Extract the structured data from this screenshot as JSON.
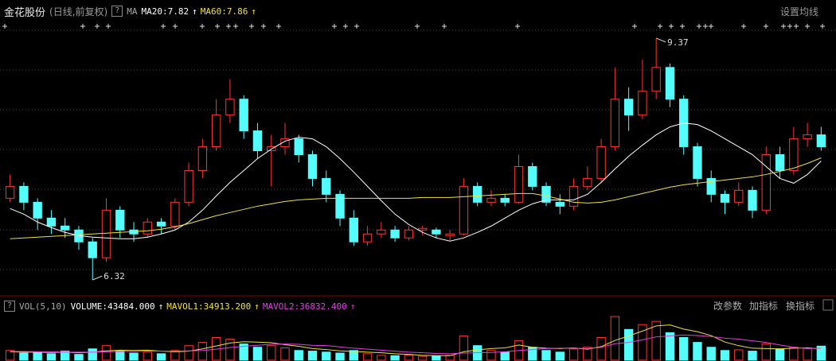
{
  "toolbar": {
    "help": "?",
    "arrow": "↑",
    "set_ma": "设置均线",
    "buttons": [
      "改参数",
      "加指标",
      "换指标"
    ]
  },
  "chart_data": [
    {
      "type": "candlestick",
      "title": "金花股份",
      "subtitle": "(日线,前复权)",
      "indicator": "MA",
      "up_color": "#ff3232",
      "down_color": "#54fcfc",
      "ylim": [
        6.14,
        9.57
      ],
      "high_label": "9.37",
      "low_label": "6.32",
      "ohlc": [
        [
          7.35,
          7.65,
          7.3,
          7.5
        ],
        [
          7.5,
          7.55,
          7.2,
          7.3
        ],
        [
          7.3,
          7.35,
          6.95,
          7.1
        ],
        [
          7.1,
          7.2,
          6.9,
          7.0
        ],
        [
          7.0,
          7.1,
          6.85,
          6.95
        ],
        [
          6.95,
          7.0,
          6.7,
          6.8
        ],
        [
          6.8,
          6.85,
          6.32,
          6.6
        ],
        [
          6.6,
          7.35,
          6.55,
          7.2
        ],
        [
          7.2,
          7.25,
          6.85,
          6.95
        ],
        [
          6.95,
          7.05,
          6.8,
          6.9
        ],
        [
          6.9,
          7.1,
          6.85,
          7.05
        ],
        [
          7.05,
          7.1,
          6.9,
          7.0
        ],
        [
          7.0,
          7.35,
          6.95,
          7.3
        ],
        [
          7.3,
          7.8,
          7.25,
          7.7
        ],
        [
          7.7,
          8.1,
          7.6,
          8.0
        ],
        [
          8.0,
          8.6,
          7.95,
          8.4
        ],
        [
          8.4,
          8.85,
          8.3,
          8.6
        ],
        [
          8.6,
          8.65,
          8.1,
          8.2
        ],
        [
          8.2,
          8.3,
          7.85,
          7.95
        ],
        [
          7.95,
          8.15,
          7.5,
          8.0
        ],
        [
          8.0,
          8.3,
          7.9,
          8.1
        ],
        [
          8.1,
          8.15,
          7.8,
          7.9
        ],
        [
          7.9,
          7.95,
          7.5,
          7.6
        ],
        [
          7.6,
          7.7,
          7.3,
          7.4
        ],
        [
          7.4,
          7.45,
          7.0,
          7.1
        ],
        [
          7.1,
          7.2,
          6.75,
          6.8
        ],
        [
          6.8,
          7.0,
          6.75,
          6.9
        ],
        [
          6.9,
          7.05,
          6.85,
          6.95
        ],
        [
          6.95,
          7.0,
          6.8,
          6.85
        ],
        [
          6.85,
          7.0,
          6.82,
          6.95
        ],
        [
          6.95,
          7.0,
          6.88,
          6.97
        ],
        [
          6.95,
          6.98,
          6.85,
          6.9
        ],
        [
          6.88,
          6.95,
          6.82,
          6.9
        ],
        [
          6.9,
          7.6,
          6.88,
          7.5
        ],
        [
          7.5,
          7.55,
          7.25,
          7.3
        ],
        [
          7.3,
          7.45,
          7.25,
          7.35
        ],
        [
          7.35,
          7.4,
          7.25,
          7.3
        ],
        [
          7.3,
          7.9,
          7.28,
          7.75
        ],
        [
          7.75,
          7.8,
          7.45,
          7.5
        ],
        [
          7.5,
          7.55,
          7.25,
          7.3
        ],
        [
          7.3,
          7.4,
          7.15,
          7.25
        ],
        [
          7.25,
          7.6,
          7.2,
          7.5
        ],
        [
          7.5,
          7.75,
          7.45,
          7.6
        ],
        [
          7.6,
          8.1,
          7.55,
          8.0
        ],
        [
          8.0,
          9.0,
          7.95,
          8.6
        ],
        [
          8.6,
          8.75,
          8.2,
          8.4
        ],
        [
          8.4,
          9.1,
          8.35,
          8.7
        ],
        [
          8.7,
          9.37,
          8.6,
          9.0
        ],
        [
          9.0,
          9.05,
          8.5,
          8.6
        ],
        [
          8.6,
          8.65,
          7.9,
          8.0
        ],
        [
          8.0,
          8.05,
          7.5,
          7.6
        ],
        [
          7.6,
          7.7,
          7.3,
          7.4
        ],
        [
          7.4,
          7.45,
          7.15,
          7.3
        ],
        [
          7.3,
          7.55,
          7.25,
          7.45
        ],
        [
          7.45,
          7.5,
          7.1,
          7.2
        ],
        [
          7.2,
          8.0,
          7.15,
          7.9
        ],
        [
          7.9,
          8.0,
          7.6,
          7.7
        ],
        [
          7.7,
          8.25,
          7.65,
          8.1
        ],
        [
          8.1,
          8.3,
          8.0,
          8.15
        ],
        [
          8.15,
          8.25,
          7.95,
          8.0
        ]
      ],
      "series": [
        {
          "name": "MA20:7.82",
          "color": "#ffffff",
          "values": [
            7.22,
            7.15,
            7.05,
            6.98,
            6.92,
            6.88,
            6.86,
            6.85,
            6.84,
            6.84,
            6.86,
            6.9,
            6.95,
            7.05,
            7.2,
            7.38,
            7.55,
            7.7,
            7.85,
            7.97,
            8.07,
            8.12,
            8.1,
            8.0,
            7.85,
            7.68,
            7.5,
            7.32,
            7.15,
            7.02,
            6.92,
            6.85,
            6.81,
            6.85,
            6.92,
            7.0,
            7.1,
            7.2,
            7.28,
            7.33,
            7.33,
            7.33,
            7.4,
            7.55,
            7.72,
            7.88,
            8.02,
            8.15,
            8.25,
            8.3,
            8.28,
            8.2,
            8.1,
            8.0,
            7.9,
            7.75,
            7.6,
            7.54,
            7.65,
            7.82
          ]
        },
        {
          "name": "MA60:7.86",
          "color": "#f0e040",
          "values": [
            6.84,
            6.85,
            6.86,
            6.87,
            6.88,
            6.89,
            6.9,
            6.91,
            6.92,
            6.93,
            6.94,
            6.96,
            6.99,
            7.03,
            7.08,
            7.13,
            7.17,
            7.21,
            7.25,
            7.28,
            7.31,
            7.33,
            7.34,
            7.35,
            7.35,
            7.35,
            7.35,
            7.35,
            7.35,
            7.35,
            7.36,
            7.36,
            7.36,
            7.37,
            7.38,
            7.39,
            7.4,
            7.41,
            7.41,
            7.38,
            7.34,
            7.3,
            7.29,
            7.3,
            7.33,
            7.37,
            7.41,
            7.45,
            7.49,
            7.52,
            7.54,
            7.56,
            7.58,
            7.6,
            7.62,
            7.65,
            7.69,
            7.73,
            7.79,
            7.86
          ]
        }
      ]
    },
    {
      "type": "bar",
      "title": "VOL(5,10)",
      "ylim": [
        0,
        140000
      ],
      "series": [
        {
          "name": "VOLUME:43484.000",
          "color": "#ffffff",
          "values": [
            30000,
            22000,
            25000,
            20000,
            28000,
            18000,
            35000,
            45000,
            30000,
            22000,
            25000,
            20000,
            30000,
            45000,
            55000,
            70000,
            65000,
            50000,
            40000,
            45000,
            38000,
            30000,
            28000,
            25000,
            22000,
            30000,
            20000,
            15000,
            14000,
            16000,
            12000,
            13000,
            15000,
            75000,
            45000,
            30000,
            25000,
            60000,
            40000,
            30000,
            25000,
            35000,
            40000,
            70000,
            135000,
            95000,
            110000,
            120000,
            85000,
            70000,
            55000,
            40000,
            30000,
            32000,
            28000,
            50000,
            35000,
            40000,
            38000,
            43484
          ]
        },
        {
          "name": "MAVOL1:34913.200",
          "color": "#f0e040",
          "values": [
            26000,
            25000,
            25000,
            24000,
            25000,
            23000,
            25000,
            29000,
            31000,
            30000,
            31000,
            28000,
            26000,
            28000,
            35000,
            44000,
            53000,
            57000,
            56000,
            54000,
            48000,
            43000,
            36000,
            33000,
            29000,
            27000,
            25000,
            23000,
            20000,
            18000,
            15000,
            14000,
            14000,
            26000,
            32000,
            36000,
            38000,
            47000,
            40000,
            37000,
            36000,
            38000,
            34000,
            42000,
            61000,
            75000,
            90000,
            106000,
            109000,
            96000,
            88000,
            76000,
            56000,
            45000,
            37000,
            36000,
            35000,
            37000,
            38000,
            34913.2
          ]
        },
        {
          "name": "MAVOL2:36832.400",
          "color": "#e040e0",
          "values": [
            27000,
            27000,
            26000,
            26000,
            25000,
            25000,
            25000,
            26000,
            27000,
            27000,
            28000,
            28000,
            28000,
            29000,
            30000,
            34000,
            39000,
            43000,
            46000,
            49000,
            50000,
            49000,
            46000,
            45000,
            41000,
            37000,
            34000,
            31000,
            28000,
            25000,
            23000,
            21000,
            20000,
            22000,
            23000,
            24000,
            26000,
            30000,
            33000,
            36000,
            37000,
            37000,
            36000,
            40000,
            51000,
            55000,
            63000,
            72000,
            75000,
            78000,
            76000,
            73000,
            68000,
            65000,
            60000,
            55000,
            47000,
            40000,
            36000,
            36832.4
          ]
        }
      ]
    }
  ]
}
